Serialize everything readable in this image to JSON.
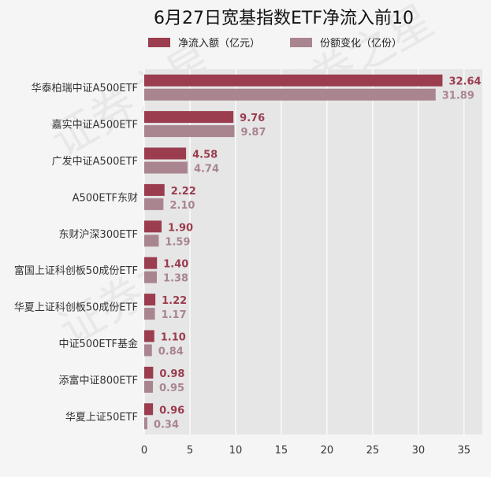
{
  "chart_data": {
    "type": "bar",
    "orientation": "horizontal",
    "title": "6月27日宽基指数ETF净流入前10",
    "categories": [
      "华泰柏瑞中证A500ETF",
      "嘉实中证A500ETF",
      "广发中证A500ETF",
      "A500ETF东财",
      "东财沪深300ETF",
      "富国上证科创板50成份ETF",
      "华夏上证科创板50成份ETF",
      "中证500ETF基金",
      "添富中证800ETF",
      "华夏上证50ETF"
    ],
    "series": [
      {
        "name": "净流入额（亿元）",
        "color": "#9b3d4f",
        "values": [
          32.64,
          9.76,
          4.58,
          2.22,
          1.9,
          1.4,
          1.22,
          1.1,
          0.98,
          0.96
        ],
        "labels": [
          "32.64",
          "9.76",
          "4.58",
          "2.22",
          "1.90",
          "1.40",
          "1.22",
          "1.10",
          "0.98",
          "0.96"
        ]
      },
      {
        "name": "份额变化（亿份）",
        "color": "#a9858f",
        "values": [
          31.89,
          9.87,
          4.74,
          2.1,
          1.59,
          1.38,
          1.17,
          0.84,
          0.95,
          0.34
        ],
        "labels": [
          "31.89",
          "9.87",
          "4.74",
          "2.10",
          "1.59",
          "1.38",
          "1.17",
          "0.84",
          "0.95",
          "0.34"
        ]
      }
    ],
    "xlim": [
      0,
      37
    ],
    "xticks": [
      0,
      5,
      10,
      15,
      20,
      25,
      30,
      35
    ],
    "xtick_labels": [
      "0",
      "5",
      "10",
      "15",
      "20",
      "25",
      "30",
      "35"
    ],
    "grid": true,
    "legend_position": "top",
    "watermark": "证券之星"
  }
}
